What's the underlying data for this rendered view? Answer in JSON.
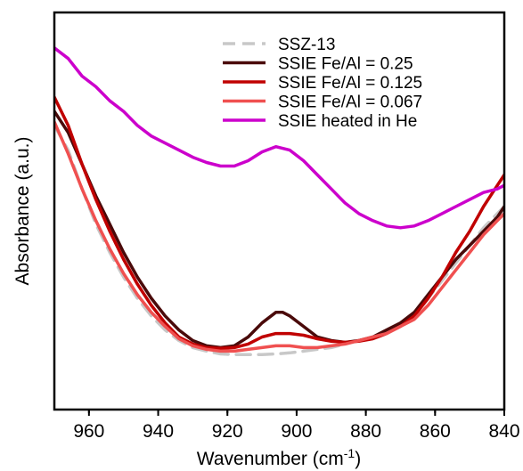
{
  "chart_data": {
    "type": "line",
    "xlabel": "Wavenumber (cm",
    "xlabel_sup": "-1",
    "xlabel_close": ")",
    "ylabel": "Absorbance (a.u.)",
    "xlim": [
      970,
      840
    ],
    "ylim": [
      0,
      1
    ],
    "x_ticks": [
      960,
      940,
      920,
      900,
      880,
      860,
      840
    ],
    "y_ticks_labeled": false,
    "grid": false,
    "legend_position": "top-right",
    "series": [
      {
        "name": "SSZ-13",
        "color": "#c8c8c8",
        "dash": "dashed",
        "points": [
          [
            970,
            0.73
          ],
          [
            966,
            0.66
          ],
          [
            962,
            0.55
          ],
          [
            958,
            0.45
          ],
          [
            954,
            0.37
          ],
          [
            950,
            0.3
          ],
          [
            946,
            0.24
          ],
          [
            942,
            0.19
          ],
          [
            938,
            0.15
          ],
          [
            934,
            0.12
          ],
          [
            930,
            0.1
          ],
          [
            926,
            0.09
          ],
          [
            922,
            0.082
          ],
          [
            918,
            0.08
          ],
          [
            914,
            0.08
          ],
          [
            910,
            0.08
          ],
          [
            906,
            0.082
          ],
          [
            902,
            0.085
          ],
          [
            898,
            0.09
          ],
          [
            894,
            0.095
          ],
          [
            890,
            0.1
          ],
          [
            886,
            0.11
          ],
          [
            882,
            0.12
          ],
          [
            878,
            0.13
          ],
          [
            874,
            0.15
          ],
          [
            870,
            0.17
          ],
          [
            866,
            0.2
          ],
          [
            862,
            0.24
          ],
          [
            858,
            0.29
          ],
          [
            854,
            0.34
          ],
          [
            850,
            0.39
          ],
          [
            846,
            0.44
          ],
          [
            842,
            0.48
          ],
          [
            840,
            0.5
          ]
        ]
      },
      {
        "name": "SSIE Fe/Al = 0.25",
        "color": "#4a0a0a",
        "dash": "solid",
        "points": [
          [
            970,
            0.77
          ],
          [
            966,
            0.71
          ],
          [
            962,
            0.62
          ],
          [
            958,
            0.53
          ],
          [
            954,
            0.45
          ],
          [
            950,
            0.37
          ],
          [
            946,
            0.3
          ],
          [
            942,
            0.24
          ],
          [
            938,
            0.19
          ],
          [
            934,
            0.15
          ],
          [
            930,
            0.12
          ],
          [
            926,
            0.105
          ],
          [
            922,
            0.1
          ],
          [
            918,
            0.105
          ],
          [
            914,
            0.13
          ],
          [
            910,
            0.17
          ],
          [
            906,
            0.2
          ],
          [
            904,
            0.2
          ],
          [
            902,
            0.19
          ],
          [
            898,
            0.16
          ],
          [
            894,
            0.13
          ],
          [
            890,
            0.12
          ],
          [
            886,
            0.115
          ],
          [
            882,
            0.12
          ],
          [
            878,
            0.13
          ],
          [
            874,
            0.15
          ],
          [
            870,
            0.17
          ],
          [
            866,
            0.2
          ],
          [
            862,
            0.25
          ],
          [
            858,
            0.3
          ],
          [
            854,
            0.35
          ],
          [
            850,
            0.39
          ],
          [
            846,
            0.43
          ],
          [
            842,
            0.47
          ],
          [
            840,
            0.5
          ]
        ]
      },
      {
        "name": "SSIE Fe/Al = 0.125",
        "color": "#c00000",
        "dash": "solid",
        "points": [
          [
            970,
            0.81
          ],
          [
            966,
            0.73
          ],
          [
            962,
            0.62
          ],
          [
            958,
            0.52
          ],
          [
            954,
            0.43
          ],
          [
            950,
            0.35
          ],
          [
            946,
            0.28
          ],
          [
            942,
            0.22
          ],
          [
            938,
            0.17
          ],
          [
            934,
            0.13
          ],
          [
            930,
            0.11
          ],
          [
            926,
            0.1
          ],
          [
            922,
            0.098
          ],
          [
            918,
            0.1
          ],
          [
            914,
            0.11
          ],
          [
            910,
            0.13
          ],
          [
            906,
            0.14
          ],
          [
            902,
            0.14
          ],
          [
            898,
            0.135
          ],
          [
            894,
            0.125
          ],
          [
            890,
            0.118
          ],
          [
            886,
            0.115
          ],
          [
            882,
            0.118
          ],
          [
            878,
            0.125
          ],
          [
            874,
            0.14
          ],
          [
            870,
            0.16
          ],
          [
            866,
            0.19
          ],
          [
            862,
            0.24
          ],
          [
            858,
            0.3
          ],
          [
            854,
            0.37
          ],
          [
            850,
            0.43
          ],
          [
            846,
            0.5
          ],
          [
            842,
            0.56
          ],
          [
            840,
            0.59
          ]
        ]
      },
      {
        "name": "SSIE Fe/Al = 0.067",
        "color": "#f05050",
        "dash": "solid",
        "points": [
          [
            970,
            0.74
          ],
          [
            966,
            0.65
          ],
          [
            962,
            0.55
          ],
          [
            958,
            0.46
          ],
          [
            954,
            0.38
          ],
          [
            950,
            0.31
          ],
          [
            946,
            0.25
          ],
          [
            942,
            0.2
          ],
          [
            938,
            0.16
          ],
          [
            934,
            0.125
          ],
          [
            930,
            0.105
          ],
          [
            926,
            0.095
          ],
          [
            922,
            0.09
          ],
          [
            918,
            0.09
          ],
          [
            914,
            0.095
          ],
          [
            910,
            0.1
          ],
          [
            906,
            0.105
          ],
          [
            902,
            0.105
          ],
          [
            898,
            0.1
          ],
          [
            894,
            0.1
          ],
          [
            890,
            0.105
          ],
          [
            886,
            0.11
          ],
          [
            882,
            0.12
          ],
          [
            878,
            0.13
          ],
          [
            874,
            0.14
          ],
          [
            870,
            0.16
          ],
          [
            866,
            0.18
          ],
          [
            862,
            0.22
          ],
          [
            858,
            0.27
          ],
          [
            854,
            0.32
          ],
          [
            850,
            0.37
          ],
          [
            846,
            0.42
          ],
          [
            842,
            0.46
          ],
          [
            840,
            0.48
          ]
        ]
      },
      {
        "name": "SSIE heated in He",
        "color": "#cc00cc",
        "dash": "solid",
        "points": [
          [
            970,
            0.95
          ],
          [
            966,
            0.92
          ],
          [
            962,
            0.87
          ],
          [
            958,
            0.84
          ],
          [
            954,
            0.8
          ],
          [
            950,
            0.77
          ],
          [
            946,
            0.73
          ],
          [
            942,
            0.7
          ],
          [
            938,
            0.68
          ],
          [
            934,
            0.66
          ],
          [
            930,
            0.64
          ],
          [
            926,
            0.625
          ],
          [
            922,
            0.615
          ],
          [
            918,
            0.615
          ],
          [
            914,
            0.63
          ],
          [
            910,
            0.655
          ],
          [
            906,
            0.67
          ],
          [
            902,
            0.66
          ],
          [
            898,
            0.63
          ],
          [
            894,
            0.59
          ],
          [
            890,
            0.55
          ],
          [
            886,
            0.51
          ],
          [
            882,
            0.48
          ],
          [
            878,
            0.46
          ],
          [
            874,
            0.445
          ],
          [
            870,
            0.44
          ],
          [
            866,
            0.445
          ],
          [
            862,
            0.46
          ],
          [
            858,
            0.48
          ],
          [
            854,
            0.5
          ],
          [
            850,
            0.52
          ],
          [
            846,
            0.54
          ],
          [
            842,
            0.55
          ],
          [
            840,
            0.56
          ]
        ]
      }
    ]
  }
}
